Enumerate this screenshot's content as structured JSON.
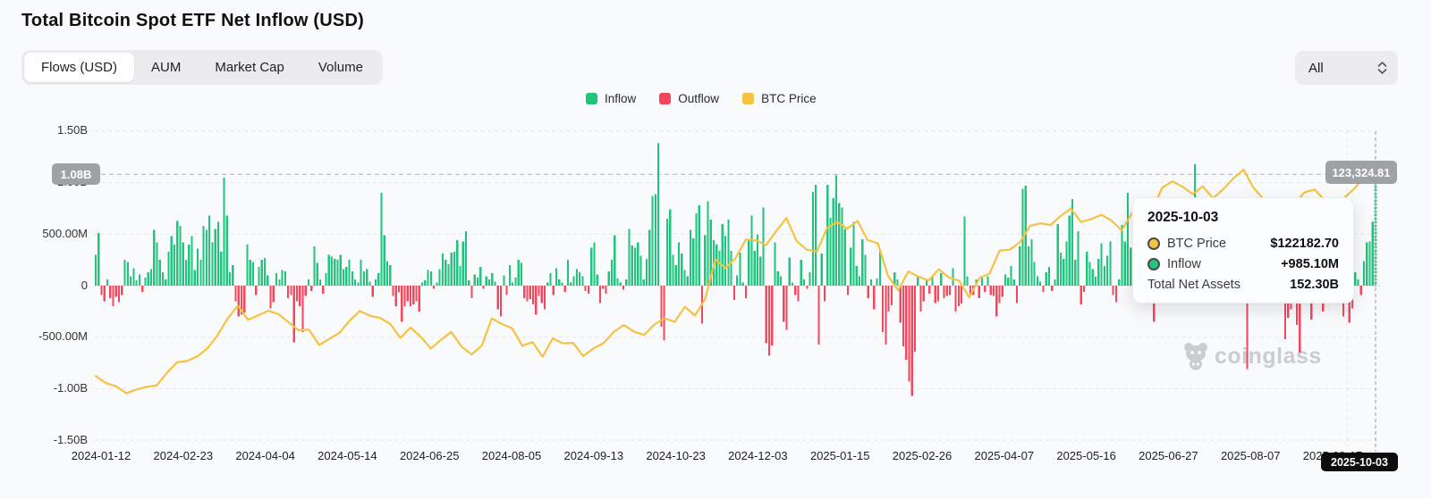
{
  "header": {
    "title": "Total Bitcoin Spot ETF Net Inflow (USD)"
  },
  "tabs": [
    {
      "label": "Flows (USD)",
      "active": true
    },
    {
      "label": "AUM",
      "active": false
    },
    {
      "label": "Market Cap",
      "active": false
    },
    {
      "label": "Volume",
      "active": false
    }
  ],
  "range_select": {
    "value": "All"
  },
  "legend": [
    {
      "label": "Inflow"
    },
    {
      "label": "Outflow"
    },
    {
      "label": "BTC Price"
    }
  ],
  "colors": {
    "inflow": "#1fc47d",
    "inflow_light": "#90e6c0",
    "outflow": "#f4465d",
    "btc_price": "#f5c242",
    "badge_gray": "#9fa2a4",
    "badge_black": "#0d0d0d"
  },
  "y_axis": {
    "labels": [
      "1.50B",
      "1.00B",
      "500.00M",
      "0",
      "-500.00M",
      "-1.00B",
      "-1.50B"
    ]
  },
  "x_axis": {
    "labels": [
      "2024-01-12",
      "2024-02-23",
      "2024-04-04",
      "2024-05-14",
      "2024-06-25",
      "2024-08-05",
      "2024-09-13",
      "2024-10-23",
      "2024-12-03",
      "2025-01-15",
      "2025-02-26",
      "2025-04-07",
      "2025-05-16",
      "2025-06-27",
      "2025-08-07",
      "2025-09-17"
    ]
  },
  "markers": {
    "flow_axis_marker": "1.08B",
    "price_axis_marker": "123,324.81",
    "crosshair_date": "2025-10-03"
  },
  "tooltip": {
    "date": "2025-10-03",
    "rows": [
      {
        "label": "BTC Price",
        "value": "$122182.70"
      },
      {
        "label": "Inflow",
        "value": "+985.10M"
      },
      {
        "label": "Total Net Assets",
        "value": "152.30B"
      }
    ]
  },
  "watermark": {
    "text": "coinglass"
  },
  "chart_data": {
    "type": "bar+line",
    "title": "Total Bitcoin Spot ETF Net Inflow (USD)",
    "x_start_date": "2024-01-11",
    "x_end_date": "2025-10-03",
    "bars_series_name": "Net Inflow/Outflow",
    "bars_unit": "USD millions per trading day (estimated from chart pixels)",
    "ylim_millions": [
      -1500,
      1500
    ],
    "grid_millions": [
      1500,
      1000,
      500,
      0,
      -500,
      -1000,
      -1500
    ],
    "latest_flow_marker_millions": 1080,
    "latest_price_marker_usd": 123324.81,
    "highlighted_last_bar_millions": 985.1,
    "bars": [
      300,
      510,
      -90,
      -150,
      60,
      -120,
      -200,
      -110,
      -160,
      -90,
      250,
      230,
      90,
      170,
      50,
      110,
      -60,
      80,
      130,
      160,
      540,
      420,
      250,
      130,
      60,
      330,
      480,
      400,
      630,
      580,
      420,
      250,
      400,
      480,
      150,
      360,
      250,
      580,
      540,
      680,
      420,
      550,
      620,
      330,
      1050,
      680,
      130,
      200,
      -150,
      -300,
      -280,
      -260,
      400,
      250,
      230,
      -90,
      180,
      250,
      270,
      100,
      -220,
      -160,
      120,
      60,
      150,
      140,
      -120,
      -90,
      -550,
      -150,
      -200,
      -450,
      -100,
      60,
      -50,
      380,
      220,
      60,
      -80,
      120,
      300,
      280,
      260,
      250,
      300,
      160,
      180,
      250,
      140,
      60,
      30,
      250,
      140,
      160,
      40,
      -110,
      60,
      120,
      900,
      490,
      240,
      200,
      -100,
      -200,
      -65,
      -350,
      -200,
      -150,
      -200,
      -180,
      -150,
      -250,
      30,
      50,
      150,
      140,
      -30,
      30,
      160,
      310,
      250,
      210,
      320,
      330,
      440,
      190,
      430,
      530,
      50,
      -120,
      110,
      80,
      180,
      -30,
      90,
      60,
      120,
      40,
      -230,
      -300,
      100,
      -90,
      200,
      30,
      80,
      250,
      220,
      -120,
      -150,
      -130,
      -180,
      -280,
      -100,
      -170,
      -230,
      30,
      120,
      -90,
      170,
      60,
      30,
      -60,
      250,
      30,
      90,
      160,
      130,
      90,
      -50,
      -80,
      370,
      420,
      110,
      -170,
      -30,
      -80,
      140,
      250,
      490,
      70,
      30,
      -40,
      60,
      550,
      390,
      370,
      420,
      290,
      60,
      260,
      540,
      870,
      890,
      1380,
      -400,
      -530,
      650,
      740,
      300,
      200,
      420,
      310,
      150,
      90,
      540,
      460,
      700,
      780,
      -370,
      490,
      820,
      640,
      440,
      400,
      340,
      600,
      480,
      640,
      340,
      -140,
      100,
      320,
      30,
      -120,
      450,
      680,
      340,
      500,
      280,
      760,
      -560,
      -680,
      -580,
      420,
      140,
      90,
      -350,
      -430,
      275,
      30,
      -90,
      -150,
      250,
      60,
      -30,
      130,
      910,
      980,
      -570,
      310,
      -150,
      980,
      660,
      850,
      1070,
      800,
      760,
      550,
      -90,
      370,
      620,
      190,
      90,
      450,
      300,
      -120,
      60,
      -230,
      70,
      340,
      -450,
      -570,
      -250,
      -190,
      130,
      60,
      -360,
      -590,
      -720,
      -930,
      -1070,
      -640,
      90,
      -250,
      -150,
      60,
      -80,
      90,
      -170,
      -150,
      120,
      -120,
      -100,
      -90,
      170,
      -250,
      -200,
      -175,
      670,
      90,
      -100,
      -90,
      60,
      -120,
      80,
      -60,
      90,
      -93,
      -100,
      -300,
      -170,
      -110,
      110,
      80,
      190,
      60,
      -170,
      380,
      940,
      970,
      380,
      450,
      230,
      90,
      40,
      -60,
      130,
      180,
      -50,
      60,
      600,
      320,
      260,
      430,
      680,
      840,
      250,
      530,
      -180,
      -60,
      330,
      230,
      160,
      85,
      260,
      410,
      190,
      290,
      430,
      -90,
      -160,
      60,
      590,
      430,
      900,
      370,
      280,
      -130,
      410,
      110,
      160,
      190,
      350,
      -350,
      590,
      220,
      100,
      170,
      240,
      -90,
      130,
      350,
      420,
      100,
      80,
      220,
      770,
      1180,
      230,
      360,
      300,
      -130,
      530,
      430,
      90,
      80,
      150,
      600,
      -80,
      -90,
      130,
      90,
      60,
      350,
      -140,
      -810,
      330,
      90,
      180,
      280,
      650,
      230,
      310,
      -60,
      -120,
      -170,
      230,
      60,
      -520,
      -310,
      -230,
      120,
      -380,
      -650,
      180,
      -90,
      250,
      -330,
      640,
      130,
      360,
      -250,
      90,
      220,
      550,
      330,
      260,
      160,
      -300,
      90,
      -360,
      -220,
      130,
      60,
      -90,
      240,
      420,
      430,
      620,
      985
    ],
    "price_series_name": "BTC Price",
    "price_unit": "thousand USD (estimated from chart pixels)",
    "btc_price_k": [
      46.6,
      44.0,
      42.8,
      40.2,
      41.5,
      42.6,
      43.1,
      47.8,
      51.8,
      52.3,
      54.0,
      57.0,
      62.0,
      68.3,
      73.1,
      67.8,
      69.5,
      71.2,
      69.9,
      66.8,
      63.8,
      64.1,
      58.3,
      60.6,
      62.9,
      67.5,
      71.1,
      69.3,
      68.5,
      66.2,
      61.0,
      64.9,
      61.4,
      57.0,
      60.3,
      63.2,
      57.8,
      54.7,
      58.0,
      68.3,
      66.2,
      64.6,
      58.0,
      59.4,
      53.9,
      60.8,
      58.9,
      59.1,
      54.1,
      57.0,
      59.0,
      63.2,
      65.8,
      63.3,
      62.1,
      66.0,
      68.4,
      67.0,
      72.7,
      69.4,
      75.6,
      90.5,
      87.3,
      91.0,
      98.0,
      97.7,
      95.9,
      101.2,
      106.1,
      97.5,
      94.2,
      93.5,
      102.3,
      104.7,
      102.1,
      105.0,
      97.8,
      96.6,
      84.3,
      78.9,
      86.0,
      84.0,
      82.6,
      86.8,
      83.7,
      82.5,
      76.3,
      83.5,
      85.2,
      93.9,
      94.2,
      97.0,
      103.2,
      104.1,
      103.5,
      106.9,
      109.7,
      104.6,
      105.7,
      107.3,
      105.2,
      101.5,
      107.8,
      108.3,
      109.0,
      117.5,
      119.9,
      117.9,
      115.1,
      118.0,
      113.5,
      116.9,
      121.0,
      124.3,
      117.4,
      113.0,
      108.8,
      112.5,
      111.1,
      115.8,
      116.8,
      112.8,
      109.6,
      114.0,
      117.5,
      122.2,
      123.3
    ]
  }
}
